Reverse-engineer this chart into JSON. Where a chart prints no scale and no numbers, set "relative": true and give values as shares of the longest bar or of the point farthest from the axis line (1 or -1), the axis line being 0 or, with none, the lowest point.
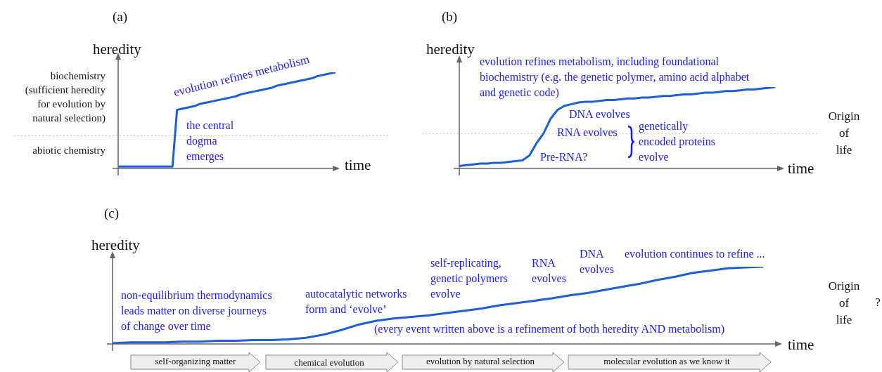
{
  "chart_data": [
    {
      "type": "line",
      "title": "(a)",
      "xlabel": "time",
      "ylabel": "heredity",
      "relative": true,
      "marker": "none",
      "categories": [
        null,
        null,
        null,
        null,
        null,
        null,
        null,
        null,
        null,
        null,
        null,
        null,
        null,
        null,
        null,
        null,
        null,
        null,
        null,
        null,
        null,
        null,
        null,
        null,
        null,
        null,
        null,
        null,
        null,
        null,
        null,
        null,
        null,
        null,
        null,
        null,
        null,
        null,
        null,
        null,
        null,
        null,
        null,
        null,
        null,
        null,
        null,
        null,
        null
      ],
      "series": [
        {
          "color": "#1f5fd6",
          "values": [
            0.02,
            0.02,
            0.02,
            0.02,
            0.02,
            0.02,
            0.02,
            0.02,
            0.02,
            0.02,
            0.02,
            0.02,
            0.02,
            0.61,
            0.62,
            0.63,
            0.64,
            0.65,
            0.67,
            0.68,
            0.69,
            0.7,
            0.71,
            0.72,
            0.73,
            0.74,
            0.75,
            0.77,
            0.78,
            0.79,
            0.8,
            0.81,
            0.82,
            0.83,
            0.84,
            0.86,
            0.87,
            0.88,
            0.89,
            0.9,
            0.91,
            0.92,
            0.93,
            0.94,
            0.96,
            0.97,
            0.98,
            0.99,
            1.0
          ]
        }
      ],
      "ref_lines": [
        {
          "axis": "y",
          "value": 0.34,
          "color": "#bbbbbb",
          "line_style": "dotted"
        }
      ],
      "annotations": [
        "biochemistry\n(sufficient heredity\nfor evolution by\nnatural selection)",
        "abiotic chemistry",
        "evolution refines metabolism",
        "the central\ndogma\nemerges"
      ]
    },
    {
      "type": "line",
      "title": "(b)",
      "xlabel": "time",
      "ylabel": "heredity",
      "relative": true,
      "marker": "none",
      "categories": [
        null,
        null,
        null,
        null,
        null,
        null,
        null,
        null,
        null,
        null,
        null,
        null,
        null,
        null,
        null,
        null,
        null,
        null,
        null,
        null,
        null,
        null,
        null,
        null,
        null,
        null,
        null,
        null,
        null,
        null,
        null,
        null,
        null,
        null,
        null,
        null,
        null,
        null,
        null,
        null,
        null,
        null,
        null,
        null,
        null,
        null
      ],
      "series": [
        {
          "color": "#1f5fd6",
          "values": [
            0.03,
            0.04,
            0.05,
            0.06,
            0.06,
            0.07,
            0.07,
            0.08,
            0.09,
            0.1,
            0.16,
            0.31,
            0.43,
            0.61,
            0.72,
            0.77,
            0.79,
            0.81,
            0.82,
            0.82,
            0.83,
            0.84,
            0.84,
            0.85,
            0.86,
            0.86,
            0.87,
            0.87,
            0.88,
            0.89,
            0.89,
            0.9,
            0.91,
            0.91,
            0.92,
            0.93,
            0.93,
            0.94,
            0.95,
            0.95,
            0.96,
            0.97,
            0.97,
            0.98,
            0.99,
            1.0
          ]
        }
      ],
      "ref_lines": [
        {
          "axis": "y",
          "value": 0.43,
          "label": "Origin\nof\nlife",
          "color": "#bbbbbb",
          "line_style": "dotted"
        }
      ],
      "annotations": [
        "evolution refines metabolism, including foundational\nbiochemistry (e.g. the genetic polymer, amino acid alphabet\nand genetic code)",
        "DNA evolves",
        "RNA evolves",
        "Pre-RNA?",
        "genetically\nencoded proteins\nevolve"
      ]
    },
    {
      "type": "line",
      "title": "(c)",
      "xlabel": "time",
      "ylabel": "heredity",
      "relative": true,
      "marker": "none",
      "categories": [
        null,
        null,
        null,
        null,
        null,
        null,
        null,
        null,
        null,
        null,
        null,
        null,
        null,
        null,
        null,
        null,
        null,
        null,
        null,
        null,
        null,
        null,
        null,
        null,
        null,
        null,
        null,
        null,
        null,
        null,
        null,
        null,
        null,
        null,
        null,
        null,
        null,
        null
      ],
      "series": [
        {
          "color": "#1f5fd6",
          "values": [
            0.01,
            0.02,
            0.02,
            0.02,
            0.03,
            0.03,
            0.04,
            0.04,
            0.05,
            0.05,
            0.06,
            0.08,
            0.12,
            0.18,
            0.25,
            0.3,
            0.33,
            0.35,
            0.37,
            0.4,
            0.43,
            0.46,
            0.5,
            0.53,
            0.56,
            0.59,
            0.63,
            0.66,
            0.7,
            0.74,
            0.78,
            0.83,
            0.87,
            0.92,
            0.95,
            0.98,
            0.99,
            1.0
          ]
        }
      ],
      "annotations": [
        "non-equilibrium thermodynamics\nleads matter on diverse journeys\nof change over time",
        "autocatalytic networks\nform and ‘evolve’",
        "self-replicating,\ngenetic polymers\nevolve",
        "RNA\nevolves",
        "DNA\nevolves",
        "evolution continues to refine ...",
        "(every event written above is a refinement of both heredity AND metabolism)",
        "Origin\nof\nlife",
        "?",
        "self-organizing matter",
        "chemical evolution",
        "evolution by natural selection",
        "molecular evolution as we know it"
      ]
    }
  ]
}
